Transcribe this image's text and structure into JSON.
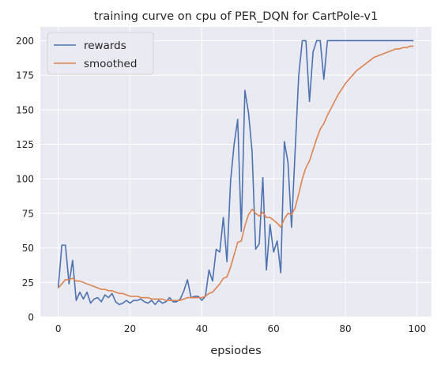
{
  "chart_data": {
    "type": "line",
    "title": "training curve on cpu of PER_DQN for CartPole-v1",
    "xlabel": "epsiodes",
    "ylabel": "",
    "xlim": [
      -5,
      104
    ],
    "ylim": [
      0,
      210
    ],
    "xticks": [
      0,
      20,
      40,
      60,
      80,
      100
    ],
    "yticks": [
      0,
      25,
      50,
      75,
      100,
      125,
      150,
      175,
      200
    ],
    "grid": true,
    "legend_position": "top-left",
    "background": "#eaeaf2",
    "series": [
      {
        "name": "rewards",
        "color": "#4c72b0",
        "x": [
          0,
          1,
          2,
          3,
          4,
          5,
          6,
          7,
          8,
          9,
          10,
          11,
          12,
          13,
          14,
          15,
          16,
          17,
          18,
          19,
          20,
          21,
          22,
          23,
          24,
          25,
          26,
          27,
          28,
          29,
          30,
          31,
          32,
          33,
          34,
          35,
          36,
          37,
          38,
          39,
          40,
          41,
          42,
          43,
          44,
          45,
          46,
          47,
          48,
          49,
          50,
          51,
          52,
          53,
          54,
          55,
          56,
          57,
          58,
          59,
          60,
          61,
          62,
          63,
          64,
          65,
          66,
          67,
          68,
          69,
          70,
          71,
          72,
          73,
          74,
          75,
          76,
          77,
          78,
          79,
          80,
          81,
          82,
          83,
          84,
          85,
          86,
          87,
          88,
          89,
          90,
          91,
          92,
          93,
          94,
          95,
          96,
          97,
          98,
          99
        ],
        "values": [
          21,
          52,
          52,
          24,
          41,
          12,
          18,
          13,
          18,
          10,
          13,
          14,
          11,
          16,
          14,
          17,
          11,
          9,
          10,
          12,
          10,
          12,
          12,
          13,
          11,
          10,
          12,
          9,
          12,
          10,
          11,
          14,
          11,
          11,
          13,
          19,
          27,
          14,
          15,
          15,
          12,
          15,
          34,
          26,
          49,
          47,
          72,
          40,
          98,
          125,
          143,
          62,
          164,
          148,
          120,
          49,
          53,
          101,
          34,
          67,
          47,
          55,
          32,
          127,
          112,
          65,
          120,
          175,
          200,
          200,
          156,
          192,
          200,
          200,
          172,
          200,
          200,
          200,
          200,
          200,
          200,
          200,
          200,
          200,
          200,
          200,
          200,
          200,
          200,
          200,
          200,
          200,
          200,
          200,
          200,
          200,
          200,
          200,
          200,
          200
        ]
      },
      {
        "name": "smoothed",
        "color": "#dd8452",
        "x": [
          0,
          1,
          2,
          3,
          4,
          5,
          6,
          7,
          8,
          9,
          10,
          11,
          12,
          13,
          14,
          15,
          16,
          17,
          18,
          19,
          20,
          21,
          22,
          23,
          24,
          25,
          26,
          27,
          28,
          29,
          30,
          31,
          32,
          33,
          34,
          35,
          36,
          37,
          38,
          39,
          40,
          41,
          42,
          43,
          44,
          45,
          46,
          47,
          48,
          49,
          50,
          51,
          52,
          53,
          54,
          55,
          56,
          57,
          58,
          59,
          60,
          61,
          62,
          63,
          64,
          65,
          66,
          67,
          68,
          69,
          70,
          71,
          72,
          73,
          74,
          75,
          76,
          77,
          78,
          79,
          80,
          81,
          82,
          83,
          84,
          85,
          86,
          87,
          88,
          89,
          90,
          91,
          92,
          93,
          94,
          95,
          96,
          97,
          98,
          99
        ],
        "values": [
          21,
          24,
          27,
          27,
          28,
          26,
          26,
          25,
          24,
          23,
          22,
          21,
          20,
          20,
          19,
          19,
          18,
          17,
          17,
          16,
          15,
          15,
          15,
          14,
          14,
          14,
          13,
          13,
          13,
          13,
          12,
          12,
          12,
          12,
          12,
          13,
          14,
          14,
          14,
          14,
          14,
          15,
          17,
          18,
          21,
          24,
          28,
          29,
          36,
          45,
          54,
          55,
          66,
          74,
          78,
          75,
          73,
          76,
          72,
          72,
          70,
          68,
          65,
          71,
          75,
          74,
          79,
          89,
          100,
          108,
          113,
          121,
          129,
          136,
          140,
          146,
          151,
          156,
          161,
          165,
          169,
          172,
          175,
          178,
          180,
          182,
          184,
          186,
          188,
          189,
          190,
          191,
          192,
          193,
          194,
          194,
          195,
          195,
          196,
          196
        ]
      }
    ]
  }
}
